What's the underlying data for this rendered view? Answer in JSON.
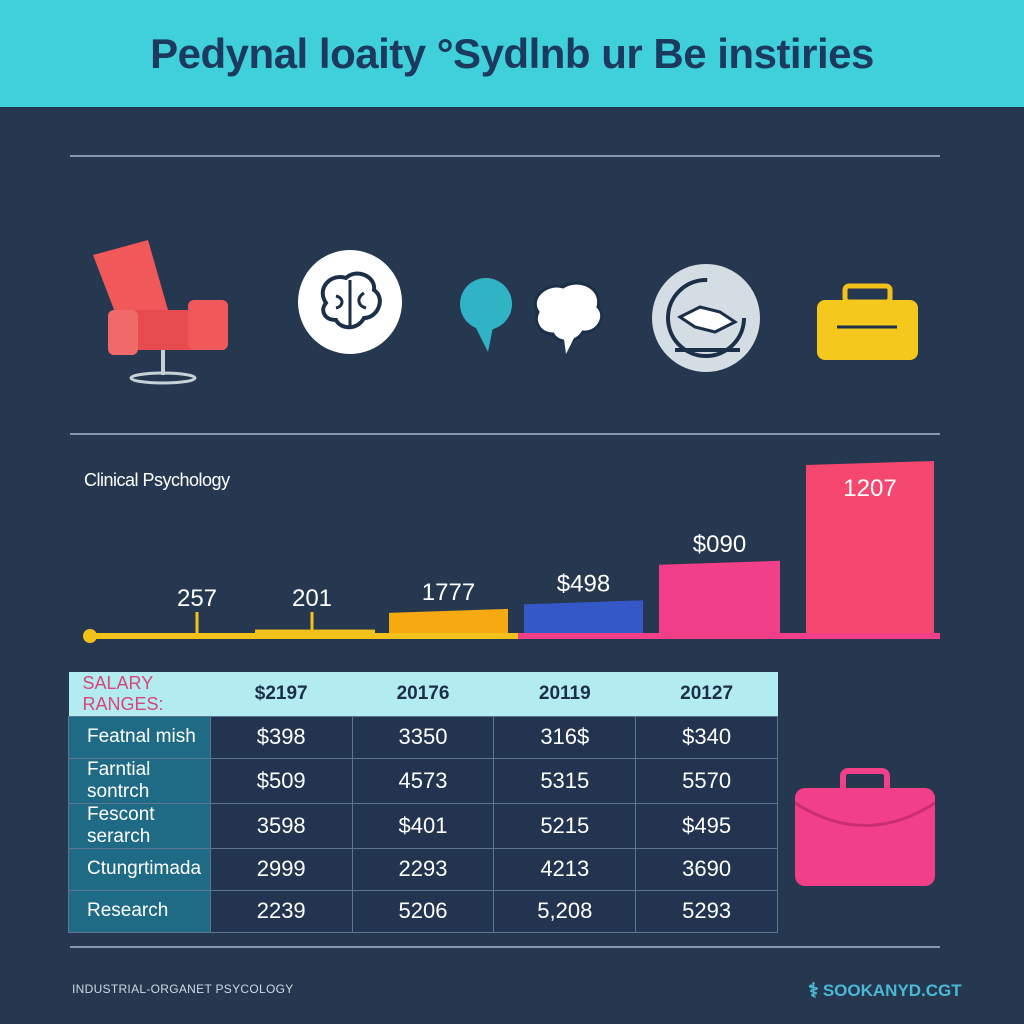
{
  "header": {
    "title": "Pedynal loaity °Sydlnb ur Be instiries"
  },
  "icons": [
    "armchair-icon",
    "brain-circle-icon",
    "speech-bubble-brain-icon",
    "handshake-circle-icon",
    "briefcase-icon"
  ],
  "chart_data": {
    "type": "bar",
    "title": "Clinical Psychology",
    "labels": [
      "257",
      "201",
      "1777",
      "$498",
      "$090",
      "1207"
    ],
    "relative_heights": [
      0,
      2,
      14,
      19,
      42,
      100
    ],
    "colors": [
      "#f2c21b",
      "#f2c21b",
      "#f7a912",
      "#3558c8",
      "#f23f8a",
      "#f5476f"
    ]
  },
  "table": {
    "headers": [
      "SALARY RANGES:",
      "$2197",
      "20176",
      "20119",
      "20127"
    ],
    "rows": [
      [
        "Featnal mish",
        "$398",
        "3350",
        "316$",
        "$340"
      ],
      [
        "Farntial sontrch",
        "$509",
        "4573",
        "5315",
        "5570"
      ],
      [
        "Fescont serarch",
        "3598",
        "$401",
        "5215",
        "$495"
      ],
      [
        "Ctungrtimada",
        "2999",
        "2293",
        "4213",
        "3690"
      ],
      [
        "Research",
        "2239",
        "5206",
        "5,208",
        "5293"
      ]
    ]
  },
  "footer": {
    "left": "INDUSTRIAL-ORGANET PSYCOLOGY",
    "right": "SOOKANYD.CGT"
  }
}
